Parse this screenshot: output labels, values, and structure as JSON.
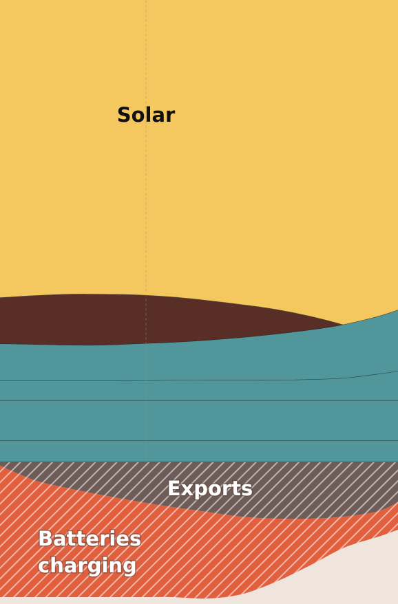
{
  "chart_data": {
    "type": "area",
    "title": "",
    "xlabel": "",
    "ylabel": "",
    "x": [
      0,
      50,
      100,
      150,
      200,
      250,
      300,
      350,
      400,
      450,
      500,
      550,
      578
    ],
    "ylim": [
      0,
      878
    ],
    "stacking": "stacked energy supply (top) and demand (bottom) bands",
    "series": [
      {
        "name": "Solar",
        "color": "#f5c75f",
        "lower_boundary": [
          445,
          448,
          450,
          450,
          449,
          446,
          441,
          435,
          428,
          418,
          405,
          388,
          377
        ]
      },
      {
        "name": "",
        "color": "#582e26",
        "lower_boundary": [
          378,
          377,
          376,
          376,
          378,
          380,
          383,
          387,
          392,
          398,
          406,
          418,
          427
        ]
      },
      {
        "name": "",
        "color": "#50969b",
        "lower_boundary": [
          324,
          324,
          324,
          324,
          324,
          325,
          325,
          325,
          325,
          326,
          328,
          334,
          338
        ]
      },
      {
        "name": "",
        "color": "#50969b",
        "lower_boundary": [
          295,
          295,
          295,
          295,
          295,
          295,
          295,
          295,
          295,
          295,
          295,
          295,
          295
        ]
      },
      {
        "name": "",
        "color": "#50969b",
        "lower_boundary": [
          237,
          237,
          237,
          237,
          237,
          237,
          237,
          237,
          237,
          237,
          237,
          237,
          237
        ]
      },
      {
        "name": "",
        "color": "#50969b",
        "lower_boundary": [
          206,
          206,
          206,
          206,
          206,
          206,
          206,
          206,
          206,
          206,
          206,
          206,
          206
        ]
      },
      {
        "name": "Exports",
        "color": "#6e5c58",
        "hatched": true,
        "lower_boundary": [
          201,
          180,
          168,
          158,
          149,
          141,
          134,
          127,
          124,
          124,
          127,
          135,
          148
        ]
      },
      {
        "name": "Batteries charging",
        "color": "#e25f3e",
        "hatched": true,
        "lower_boundary": [
          10,
          10,
          10,
          10,
          10,
          10,
          8,
          14,
          32,
          56,
          82,
          98,
          108
        ]
      }
    ],
    "labels": {
      "solar": "Solar",
      "exports": "Exports",
      "batteries_line1": "Batteries",
      "batteries_line2": "charging"
    },
    "reference_line_x": 212,
    "grid": false,
    "legend": "none (direct labels)"
  }
}
